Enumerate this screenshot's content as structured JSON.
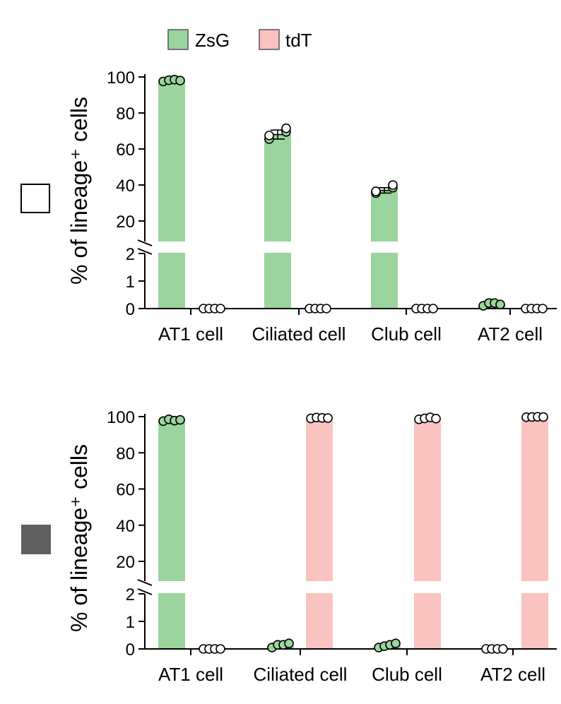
{
  "legend": [
    {
      "label": "ZsG",
      "color": "#9bd59d"
    },
    {
      "label": "tdT",
      "color": "#fbc3bf"
    }
  ],
  "colors": {
    "ZsG": "#9bd59d",
    "tdT": "#fbc3bf",
    "point_fill_zsg": "#9bd59d",
    "axis": "#000000",
    "condition_open": "#ffffff",
    "condition_filled": "#606060"
  },
  "chart_data": [
    {
      "type": "bar",
      "condition_marker": "open-square",
      "categories": [
        "AT1 cell",
        "Ciliated cell",
        "Club cell",
        "AT2 cell"
      ],
      "ylabel": "% of lineage⁺ cells",
      "ylim": [
        0,
        100
      ],
      "y_break": {
        "lower": [
          0,
          2
        ],
        "upper": [
          15,
          100
        ]
      },
      "yticks_lower": [
        "0",
        "1",
        "2"
      ],
      "yticks_upper": [
        "20",
        "40",
        "60",
        "80",
        "100"
      ],
      "series": [
        {
          "name": "ZsG",
          "values": [
            98,
            68,
            37,
            0.15
          ],
          "sem": [
            0.5,
            2.5,
            1.5,
            0.05
          ],
          "points": [
            [
              97.5,
              98.2,
              98.5,
              98.0
            ],
            [
              65.5,
              67.5,
              69.5,
              71.5
            ],
            [
              35.5,
              36.5,
              38.5,
              40.0
            ],
            [
              0.1,
              0.2,
              0.2,
              0.15
            ]
          ]
        },
        {
          "name": "tdT",
          "values": [
            0,
            0,
            0,
            0
          ],
          "sem": [
            0,
            0,
            0,
            0
          ],
          "points": [
            [
              0,
              0,
              0,
              0
            ],
            [
              0,
              0,
              0,
              0
            ],
            [
              0,
              0,
              0,
              0
            ],
            [
              0,
              0,
              0,
              0
            ]
          ]
        }
      ]
    },
    {
      "type": "bar",
      "condition_marker": "filled-square",
      "categories": [
        "AT1 cell",
        "Ciliated cell",
        "Club cell",
        "AT2 cell"
      ],
      "ylabel": "% of lineage⁺ cells",
      "ylim": [
        0,
        100
      ],
      "y_break": {
        "lower": [
          0,
          2
        ],
        "upper": [
          15,
          100
        ]
      },
      "yticks_lower": [
        "0",
        "1",
        "2"
      ],
      "yticks_upper": [
        "20",
        "40",
        "60",
        "80",
        "100"
      ],
      "series": [
        {
          "name": "ZsG",
          "values": [
            98,
            0.1,
            0.1,
            0
          ],
          "sem": [
            0.4,
            0.05,
            0.05,
            0
          ],
          "points": [
            [
              97.5,
              98.5,
              97.8,
              98.2
            ],
            [
              0.05,
              0.15,
              0.15,
              0.2
            ],
            [
              0.05,
              0.1,
              0.15,
              0.2
            ],
            [
              0,
              0,
              0,
              0
            ]
          ]
        },
        {
          "name": "tdT",
          "values": [
            0,
            99.2,
            98.8,
            99.8
          ],
          "sem": [
            0,
            0.2,
            0.3,
            0.05
          ],
          "points": [
            [
              0,
              0,
              0,
              0
            ],
            [
              99.0,
              99.5,
              99.3,
              99.2
            ],
            [
              98.5,
              99.0,
              99.6,
              98.9
            ],
            [
              99.7,
              99.8,
              99.9,
              99.8
            ]
          ]
        }
      ]
    }
  ]
}
